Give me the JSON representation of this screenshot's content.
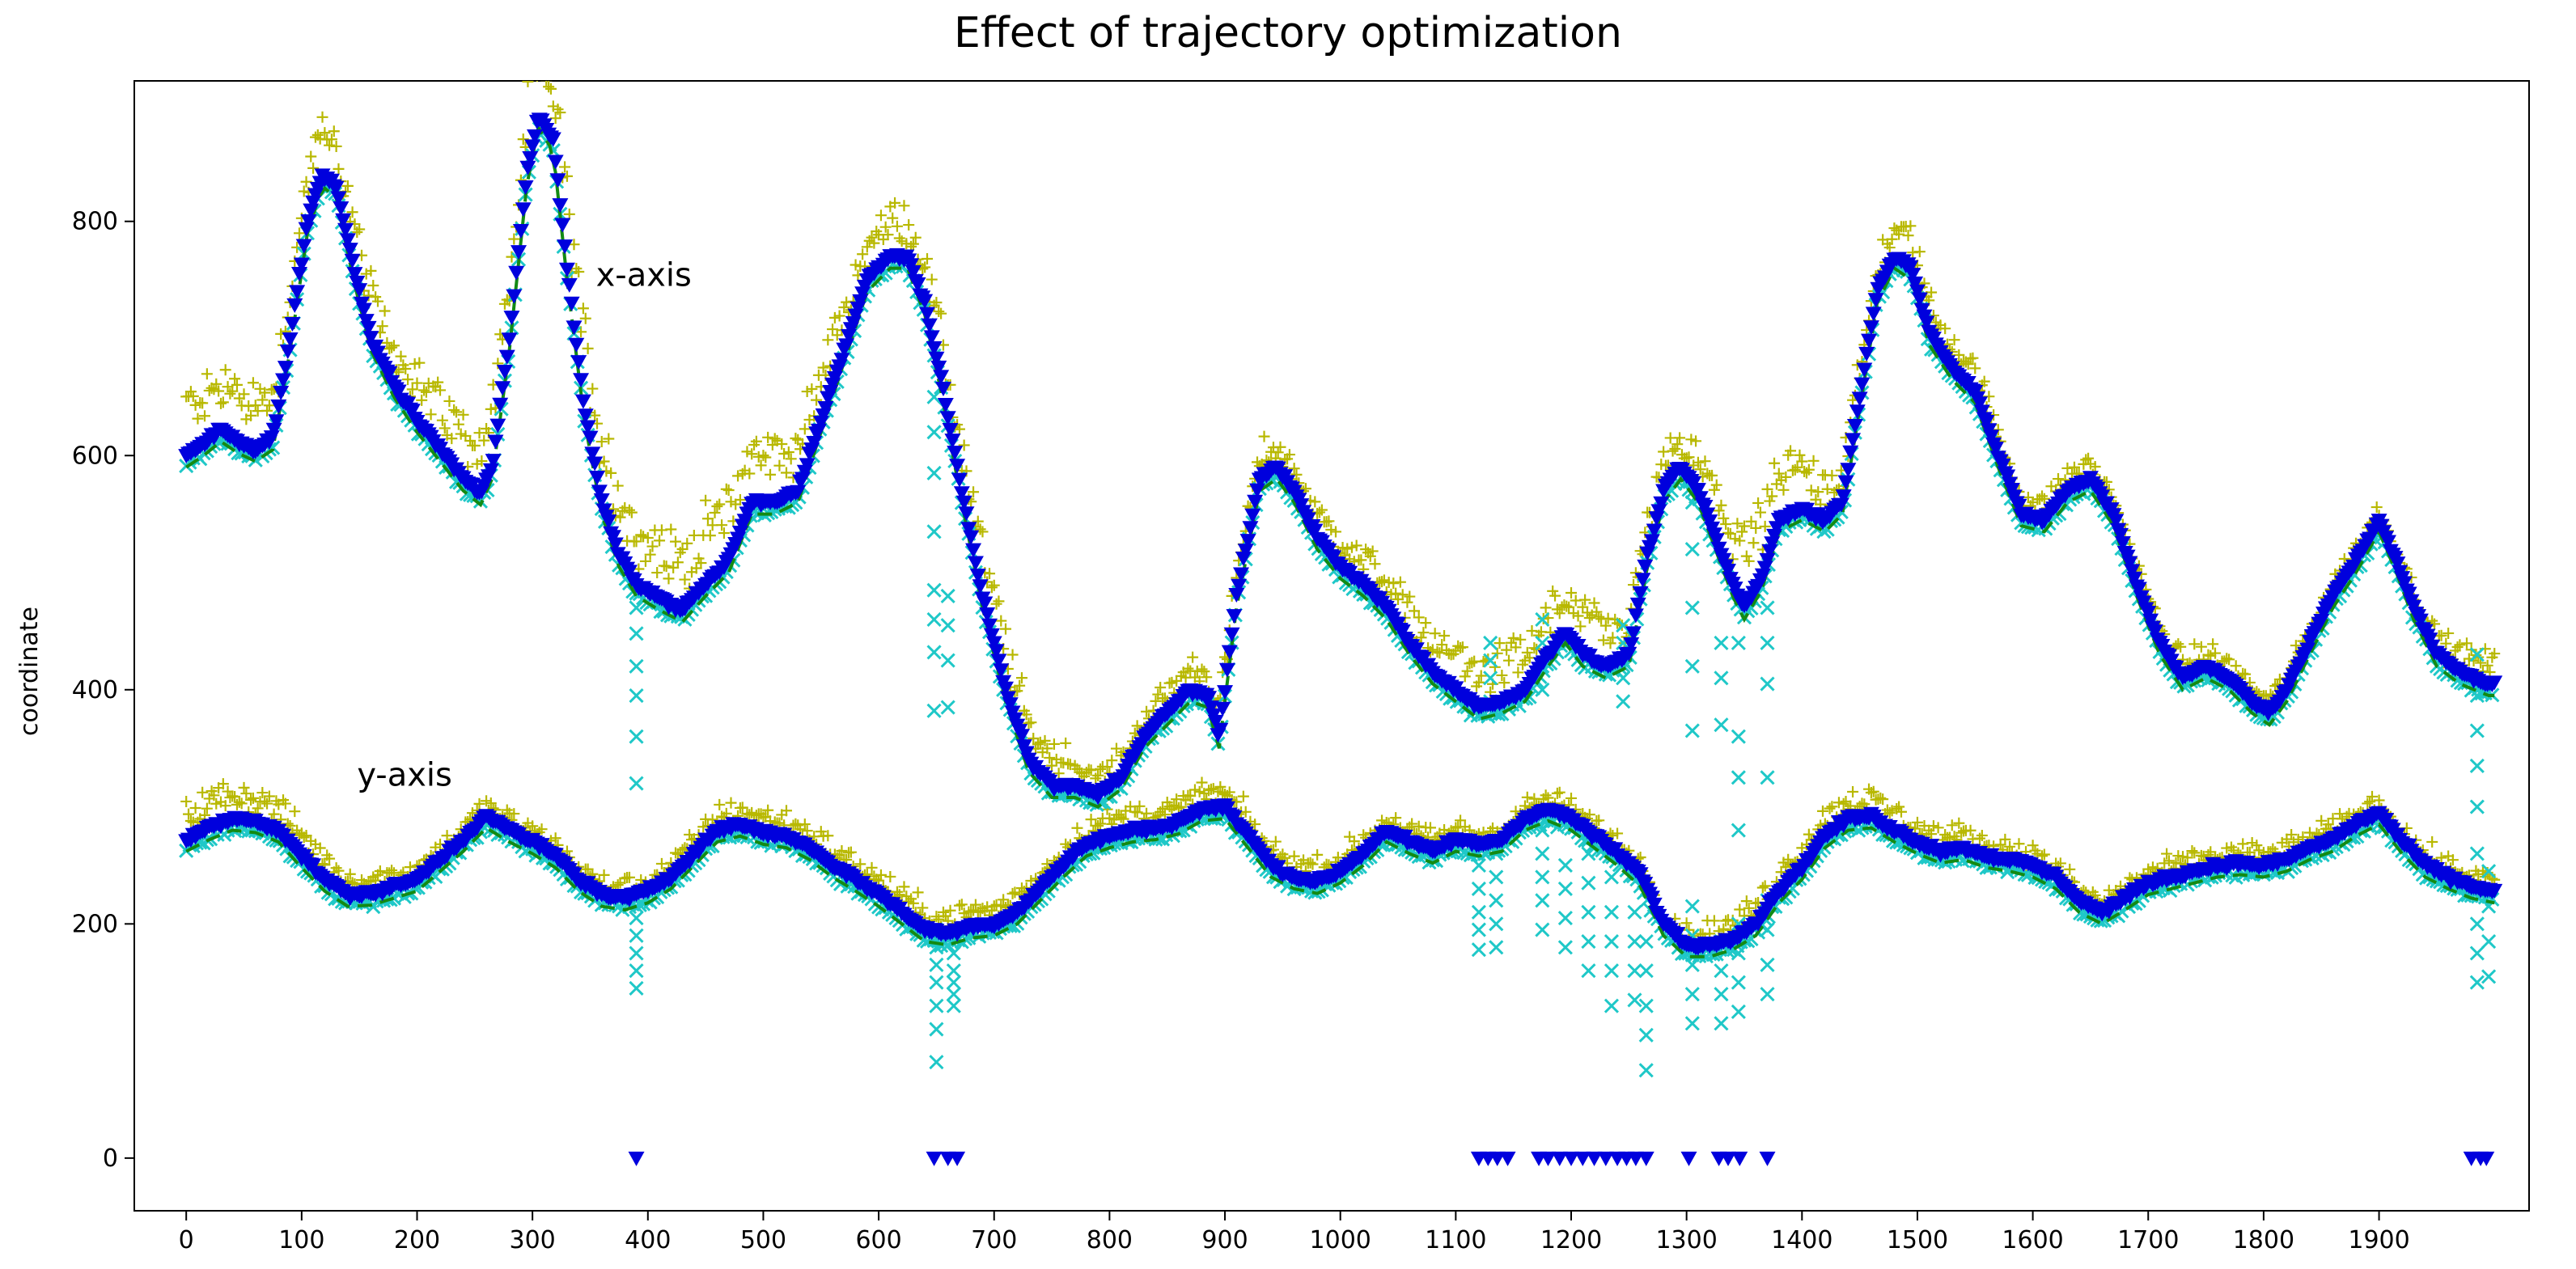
{
  "chart_data": {
    "type": "scatter",
    "title": "Effect of  trajectory optimization",
    "xlabel": "",
    "ylabel": "coordinate",
    "xlim": [
      -45,
      2030
    ],
    "ylim": [
      -45,
      920
    ],
    "xticks": [
      0,
      100,
      200,
      300,
      400,
      500,
      600,
      700,
      800,
      900,
      1000,
      1100,
      1200,
      1300,
      1400,
      1500,
      1600,
      1700,
      1800,
      1900
    ],
    "yticks": [
      0,
      200,
      400,
      600,
      800
    ],
    "grid": false,
    "annotations": [
      {
        "text": "x-axis",
        "x": 355,
        "y": 745
      },
      {
        "text": "y-axis",
        "x": 148,
        "y": 318
      }
    ],
    "colors": {
      "raw": "#b8b800",
      "filtered": "#1fc8c8",
      "optimized": "#0000dd",
      "reference": "#138a13"
    },
    "marker_names": {
      "raw": "plus-marker",
      "filtered": "x-marker",
      "optimized": "triangle-down-marker",
      "reference": "dashed-line"
    },
    "x_axis_track": [
      [
        0,
        600
      ],
      [
        15,
        610
      ],
      [
        30,
        622
      ],
      [
        45,
        612
      ],
      [
        60,
        605
      ],
      [
        75,
        615
      ],
      [
        90,
        700
      ],
      [
        105,
        800
      ],
      [
        118,
        840
      ],
      [
        130,
        830
      ],
      [
        145,
        760
      ],
      [
        160,
        700
      ],
      [
        180,
        660
      ],
      [
        200,
        630
      ],
      [
        220,
        605
      ],
      [
        240,
        580
      ],
      [
        255,
        568
      ],
      [
        265,
        590
      ],
      [
        280,
        700
      ],
      [
        295,
        840
      ],
      [
        305,
        890
      ],
      [
        318,
        870
      ],
      [
        330,
        760
      ],
      [
        345,
        640
      ],
      [
        360,
        560
      ],
      [
        375,
        515
      ],
      [
        390,
        490
      ],
      [
        410,
        478
      ],
      [
        430,
        468
      ],
      [
        450,
        490
      ],
      [
        470,
        510
      ],
      [
        490,
        560
      ],
      [
        510,
        560
      ],
      [
        530,
        570
      ],
      [
        560,
        660
      ],
      [
        590,
        750
      ],
      [
        610,
        770
      ],
      [
        625,
        770
      ],
      [
        640,
        730
      ],
      [
        655,
        660
      ],
      [
        670,
        580
      ],
      [
        690,
        480
      ],
      [
        710,
        400
      ],
      [
        730,
        340
      ],
      [
        750,
        318
      ],
      [
        770,
        318
      ],
      [
        790,
        310
      ],
      [
        810,
        325
      ],
      [
        830,
        360
      ],
      [
        850,
        380
      ],
      [
        870,
        400
      ],
      [
        885,
        395
      ],
      [
        895,
        360
      ],
      [
        910,
        480
      ],
      [
        930,
        580
      ],
      [
        945,
        590
      ],
      [
        960,
        570
      ],
      [
        980,
        530
      ],
      [
        1000,
        505
      ],
      [
        1020,
        490
      ],
      [
        1040,
        470
      ],
      [
        1060,
        440
      ],
      [
        1080,
        415
      ],
      [
        1100,
        400
      ],
      [
        1120,
        385
      ],
      [
        1140,
        390
      ],
      [
        1160,
        400
      ],
      [
        1180,
        430
      ],
      [
        1195,
        450
      ],
      [
        1210,
        430
      ],
      [
        1230,
        420
      ],
      [
        1250,
        430
      ],
      [
        1265,
        510
      ],
      [
        1280,
        570
      ],
      [
        1295,
        590
      ],
      [
        1310,
        570
      ],
      [
        1325,
        530
      ],
      [
        1340,
        490
      ],
      [
        1350,
        470
      ],
      [
        1365,
        495
      ],
      [
        1380,
        545
      ],
      [
        1400,
        555
      ],
      [
        1420,
        545
      ],
      [
        1435,
        560
      ],
      [
        1450,
        650
      ],
      [
        1465,
        740
      ],
      [
        1480,
        770
      ],
      [
        1495,
        760
      ],
      [
        1510,
        705
      ],
      [
        1530,
        675
      ],
      [
        1550,
        655
      ],
      [
        1570,
        600
      ],
      [
        1590,
        550
      ],
      [
        1610,
        545
      ],
      [
        1630,
        570
      ],
      [
        1650,
        580
      ],
      [
        1670,
        550
      ],
      [
        1690,
        490
      ],
      [
        1710,
        440
      ],
      [
        1730,
        410
      ],
      [
        1750,
        420
      ],
      [
        1770,
        410
      ],
      [
        1790,
        390
      ],
      [
        1805,
        380
      ],
      [
        1820,
        400
      ],
      [
        1840,
        440
      ],
      [
        1860,
        480
      ],
      [
        1880,
        510
      ],
      [
        1900,
        545
      ],
      [
        1915,
        510
      ],
      [
        1930,
        470
      ],
      [
        1950,
        430
      ],
      [
        1970,
        415
      ],
      [
        1995,
        405
      ]
    ],
    "y_axis_track": [
      [
        0,
        272
      ],
      [
        20,
        282
      ],
      [
        40,
        290
      ],
      [
        60,
        288
      ],
      [
        80,
        280
      ],
      [
        100,
        258
      ],
      [
        120,
        238
      ],
      [
        140,
        225
      ],
      [
        160,
        226
      ],
      [
        180,
        232
      ],
      [
        200,
        238
      ],
      [
        220,
        255
      ],
      [
        240,
        272
      ],
      [
        260,
        292
      ],
      [
        280,
        280
      ],
      [
        300,
        270
      ],
      [
        320,
        258
      ],
      [
        340,
        238
      ],
      [
        360,
        225
      ],
      [
        380,
        222
      ],
      [
        400,
        228
      ],
      [
        420,
        240
      ],
      [
        440,
        260
      ],
      [
        460,
        280
      ],
      [
        480,
        285
      ],
      [
        500,
        278
      ],
      [
        520,
        275
      ],
      [
        540,
        265
      ],
      [
        560,
        250
      ],
      [
        580,
        238
      ],
      [
        600,
        225
      ],
      [
        620,
        210
      ],
      [
        640,
        195
      ],
      [
        660,
        192
      ],
      [
        680,
        198
      ],
      [
        700,
        200
      ],
      [
        720,
        210
      ],
      [
        740,
        230
      ],
      [
        760,
        250
      ],
      [
        780,
        268
      ],
      [
        800,
        275
      ],
      [
        820,
        280
      ],
      [
        840,
        282
      ],
      [
        860,
        287
      ],
      [
        880,
        298
      ],
      [
        900,
        300
      ],
      [
        920,
        275
      ],
      [
        940,
        250
      ],
      [
        960,
        240
      ],
      [
        980,
        236
      ],
      [
        1000,
        245
      ],
      [
        1020,
        260
      ],
      [
        1040,
        280
      ],
      [
        1060,
        270
      ],
      [
        1080,
        262
      ],
      [
        1100,
        272
      ],
      [
        1120,
        268
      ],
      [
        1140,
        272
      ],
      [
        1160,
        290
      ],
      [
        1180,
        298
      ],
      [
        1200,
        290
      ],
      [
        1220,
        275
      ],
      [
        1240,
        260
      ],
      [
        1260,
        242
      ],
      [
        1280,
        200
      ],
      [
        1300,
        182
      ],
      [
        1320,
        182
      ],
      [
        1340,
        188
      ],
      [
        1360,
        200
      ],
      [
        1380,
        228
      ],
      [
        1400,
        248
      ],
      [
        1420,
        275
      ],
      [
        1440,
        290
      ],
      [
        1460,
        292
      ],
      [
        1480,
        280
      ],
      [
        1500,
        270
      ],
      [
        1520,
        262
      ],
      [
        1540,
        265
      ],
      [
        1560,
        258
      ],
      [
        1580,
        255
      ],
      [
        1600,
        250
      ],
      [
        1620,
        240
      ],
      [
        1640,
        220
      ],
      [
        1660,
        210
      ],
      [
        1680,
        222
      ],
      [
        1700,
        235
      ],
      [
        1720,
        240
      ],
      [
        1740,
        245
      ],
      [
        1760,
        250
      ],
      [
        1780,
        252
      ],
      [
        1800,
        250
      ],
      [
        1820,
        255
      ],
      [
        1840,
        265
      ],
      [
        1860,
        272
      ],
      [
        1880,
        285
      ],
      [
        1900,
        295
      ],
      [
        1920,
        270
      ],
      [
        1940,
        250
      ],
      [
        1960,
        240
      ],
      [
        1980,
        232
      ],
      [
        2000,
        228
      ]
    ],
    "raw_offsets": {
      "x_axis": [
        [
          0,
          50
        ],
        [
          200,
          40
        ],
        [
          350,
          70
        ],
        [
          400,
          50
        ],
        [
          480,
          55
        ],
        [
          600,
          35
        ],
        [
          700,
          45
        ],
        [
          800,
          15
        ],
        [
          900,
          25
        ],
        [
          950,
          20
        ],
        [
          1100,
          35
        ],
        [
          1200,
          40
        ],
        [
          1300,
          25
        ],
        [
          1350,
          60
        ],
        [
          1450,
          25
        ],
        [
          1500,
          30
        ],
        [
          1600,
          15
        ],
        [
          1700,
          15
        ],
        [
          1900,
          10
        ],
        [
          1990,
          20
        ]
      ],
      "y_axis": [
        [
          0,
          30
        ],
        [
          200,
          10
        ],
        [
          400,
          10
        ],
        [
          500,
          15
        ],
        [
          700,
          15
        ],
        [
          900,
          15
        ],
        [
          1100,
          10
        ],
        [
          1300,
          10
        ],
        [
          1400,
          20
        ],
        [
          1600,
          10
        ],
        [
          1800,
          10
        ],
        [
          1990,
          10
        ]
      ]
    },
    "outlier_columns_x": [
      {
        "x": 390,
        "values": [
          320,
          360,
          395,
          420,
          448,
          470
        ]
      },
      {
        "x": 648,
        "values": [
          382,
          432,
          460,
          485,
          535,
          585,
          620,
          650
        ]
      },
      {
        "x": 660,
        "values": [
          385,
          425,
          455,
          480
        ]
      },
      {
        "x": 1130,
        "values": [
          390,
          410,
          425,
          440
        ]
      },
      {
        "x": 1175,
        "values": [
          400,
          420,
          440,
          460
        ]
      },
      {
        "x": 1245,
        "values": [
          390,
          410,
          425,
          440,
          455
        ]
      },
      {
        "x": 1305,
        "values": [
          365,
          420,
          470,
          520,
          560
        ]
      },
      {
        "x": 1330,
        "values": [
          370,
          410,
          440
        ]
      },
      {
        "x": 1345,
        "values": [
          280,
          325,
          360,
          440
        ]
      },
      {
        "x": 1370,
        "values": [
          325,
          405,
          440,
          470
        ]
      },
      {
        "x": 1985,
        "values": [
          395,
          410,
          430
        ]
      }
    ],
    "outlier_columns_y": [
      {
        "x": 390,
        "values": [
          145,
          160,
          175,
          190,
          205,
          220
        ]
      },
      {
        "x": 650,
        "values": [
          82,
          110,
          130,
          150,
          165,
          180,
          195
        ]
      },
      {
        "x": 665,
        "values": [
          130,
          140,
          150,
          160,
          175,
          190
        ]
      },
      {
        "x": 1120,
        "values": [
          178,
          195,
          210,
          230,
          250
        ]
      },
      {
        "x": 1135,
        "values": [
          180,
          200,
          220,
          240,
          260
        ]
      },
      {
        "x": 1175,
        "values": [
          195,
          220,
          240,
          260,
          280
        ]
      },
      {
        "x": 1195,
        "values": [
          180,
          205,
          230,
          250
        ]
      },
      {
        "x": 1215,
        "values": [
          160,
          185,
          210,
          235,
          260
        ]
      },
      {
        "x": 1235,
        "values": [
          130,
          160,
          185,
          210,
          240
        ]
      },
      {
        "x": 1255,
        "values": [
          135,
          160,
          185,
          210
        ]
      },
      {
        "x": 1265,
        "values": [
          75,
          105,
          130,
          160,
          185
        ]
      },
      {
        "x": 1305,
        "values": [
          115,
          140,
          165,
          190,
          215
        ]
      },
      {
        "x": 1330,
        "values": [
          115,
          140,
          160,
          185
        ]
      },
      {
        "x": 1345,
        "values": [
          125,
          150,
          175,
          200
        ]
      },
      {
        "x": 1370,
        "values": [
          140,
          165,
          195,
          220
        ]
      },
      {
        "x": 1985,
        "values": [
          150,
          175,
          200,
          230,
          260,
          300,
          335,
          365
        ]
      },
      {
        "x": 1995,
        "values": [
          155,
          185,
          215,
          245
        ]
      }
    ],
    "zero_drops": [
      390,
      648,
      660,
      668,
      1120,
      1128,
      1136,
      1145,
      1172,
      1180,
      1190,
      1200,
      1210,
      1220,
      1230,
      1240,
      1248,
      1256,
      1265,
      1302,
      1328,
      1336,
      1346,
      1370,
      1980,
      1988,
      1993
    ]
  }
}
